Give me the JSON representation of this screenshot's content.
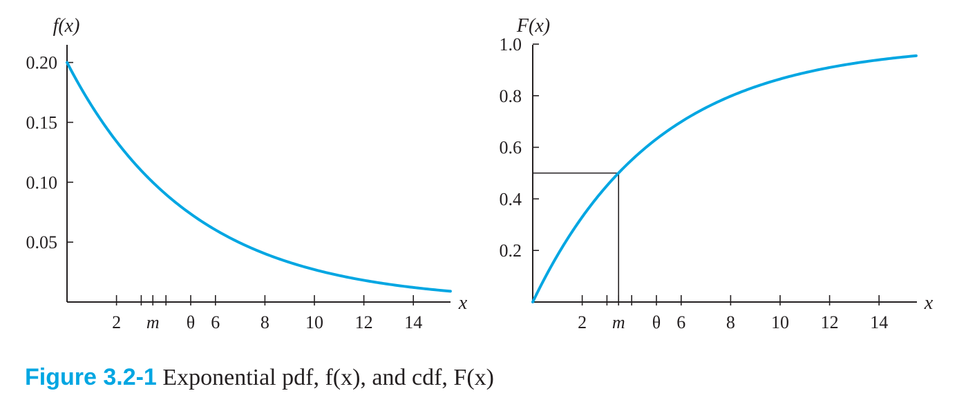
{
  "chart_data": [
    {
      "type": "line",
      "function": "exponential pdf",
      "theta": 5,
      "median_marker": 3.47,
      "points": {
        "x": [
          0,
          1,
          2,
          3,
          4,
          5,
          6,
          7,
          8,
          9,
          10,
          11,
          12,
          13,
          14,
          15.5
        ],
        "y": [
          0.2,
          0.164,
          0.134,
          0.11,
          0.09,
          0.074,
          0.06,
          0.049,
          0.04,
          0.033,
          0.027,
          0.022,
          0.018,
          0.015,
          0.012,
          0.009
        ]
      },
      "ylabel": "f(x)",
      "xlabel": "x",
      "xlim": [
        0,
        15.5
      ],
      "ylim": [
        0,
        0.21
      ],
      "x_ticks": [
        2,
        3,
        3.47,
        4,
        5,
        6,
        8,
        10,
        12,
        14
      ],
      "x_tick_labels": [
        {
          "x": 2,
          "text": "2",
          "italic": false
        },
        {
          "x": 3.47,
          "text": "m",
          "italic": true
        },
        {
          "x": 5,
          "text": "θ",
          "italic": false
        },
        {
          "x": 6,
          "text": "6",
          "italic": false
        },
        {
          "x": 8,
          "text": "8",
          "italic": false
        },
        {
          "x": 10,
          "text": "10",
          "italic": false
        },
        {
          "x": 12,
          "text": "12",
          "italic": false
        },
        {
          "x": 14,
          "text": "14",
          "italic": false
        }
      ],
      "y_ticks": [
        0.05,
        0.1,
        0.15,
        0.2
      ],
      "y_tick_labels": [
        "0.05",
        "0.10",
        "0.15",
        "0.20"
      ],
      "color": "#00a6e2"
    },
    {
      "type": "line",
      "function": "exponential cdf",
      "theta": 5,
      "median_marker": 3.47,
      "points": {
        "x": [
          0,
          1,
          2,
          3,
          3.47,
          4,
          5,
          6,
          7,
          8,
          9,
          10,
          11,
          12,
          13,
          14,
          15.5
        ],
        "y": [
          0,
          0.181,
          0.33,
          0.451,
          0.5,
          0.551,
          0.632,
          0.699,
          0.753,
          0.798,
          0.835,
          0.865,
          0.889,
          0.909,
          0.926,
          0.939,
          0.955
        ]
      },
      "ylabel": "F(x)",
      "xlabel": "x",
      "xlim": [
        0,
        15.5
      ],
      "ylim": [
        0,
        1.0
      ],
      "x_ticks": [
        2,
        3,
        3.47,
        4,
        5,
        6,
        8,
        10,
        12,
        14
      ],
      "x_tick_labels": [
        {
          "x": 2,
          "text": "2",
          "italic": false
        },
        {
          "x": 3.47,
          "text": "m",
          "italic": true
        },
        {
          "x": 5,
          "text": "θ",
          "italic": false
        },
        {
          "x": 6,
          "text": "6",
          "italic": false
        },
        {
          "x": 8,
          "text": "8",
          "italic": false
        },
        {
          "x": 10,
          "text": "10",
          "italic": false
        },
        {
          "x": 12,
          "text": "12",
          "italic": false
        },
        {
          "x": 14,
          "text": "14",
          "italic": false
        }
      ],
      "y_ticks": [
        0.2,
        0.4,
        0.6,
        0.8,
        1.0
      ],
      "y_tick_labels": [
        "0.2",
        "0.4",
        "0.6",
        "0.8",
        "1.0"
      ],
      "median_guide": {
        "x": 3.47,
        "y": 0.5
      },
      "color": "#00a6e2"
    }
  ],
  "caption": {
    "label": "Figure 3.2-1",
    "text": "Exponential pdf, f(x), and cdf, F(x)"
  },
  "colors": {
    "curve": "#00a6e2",
    "axis": "#231f20",
    "caption_label": "#00a6e2"
  }
}
